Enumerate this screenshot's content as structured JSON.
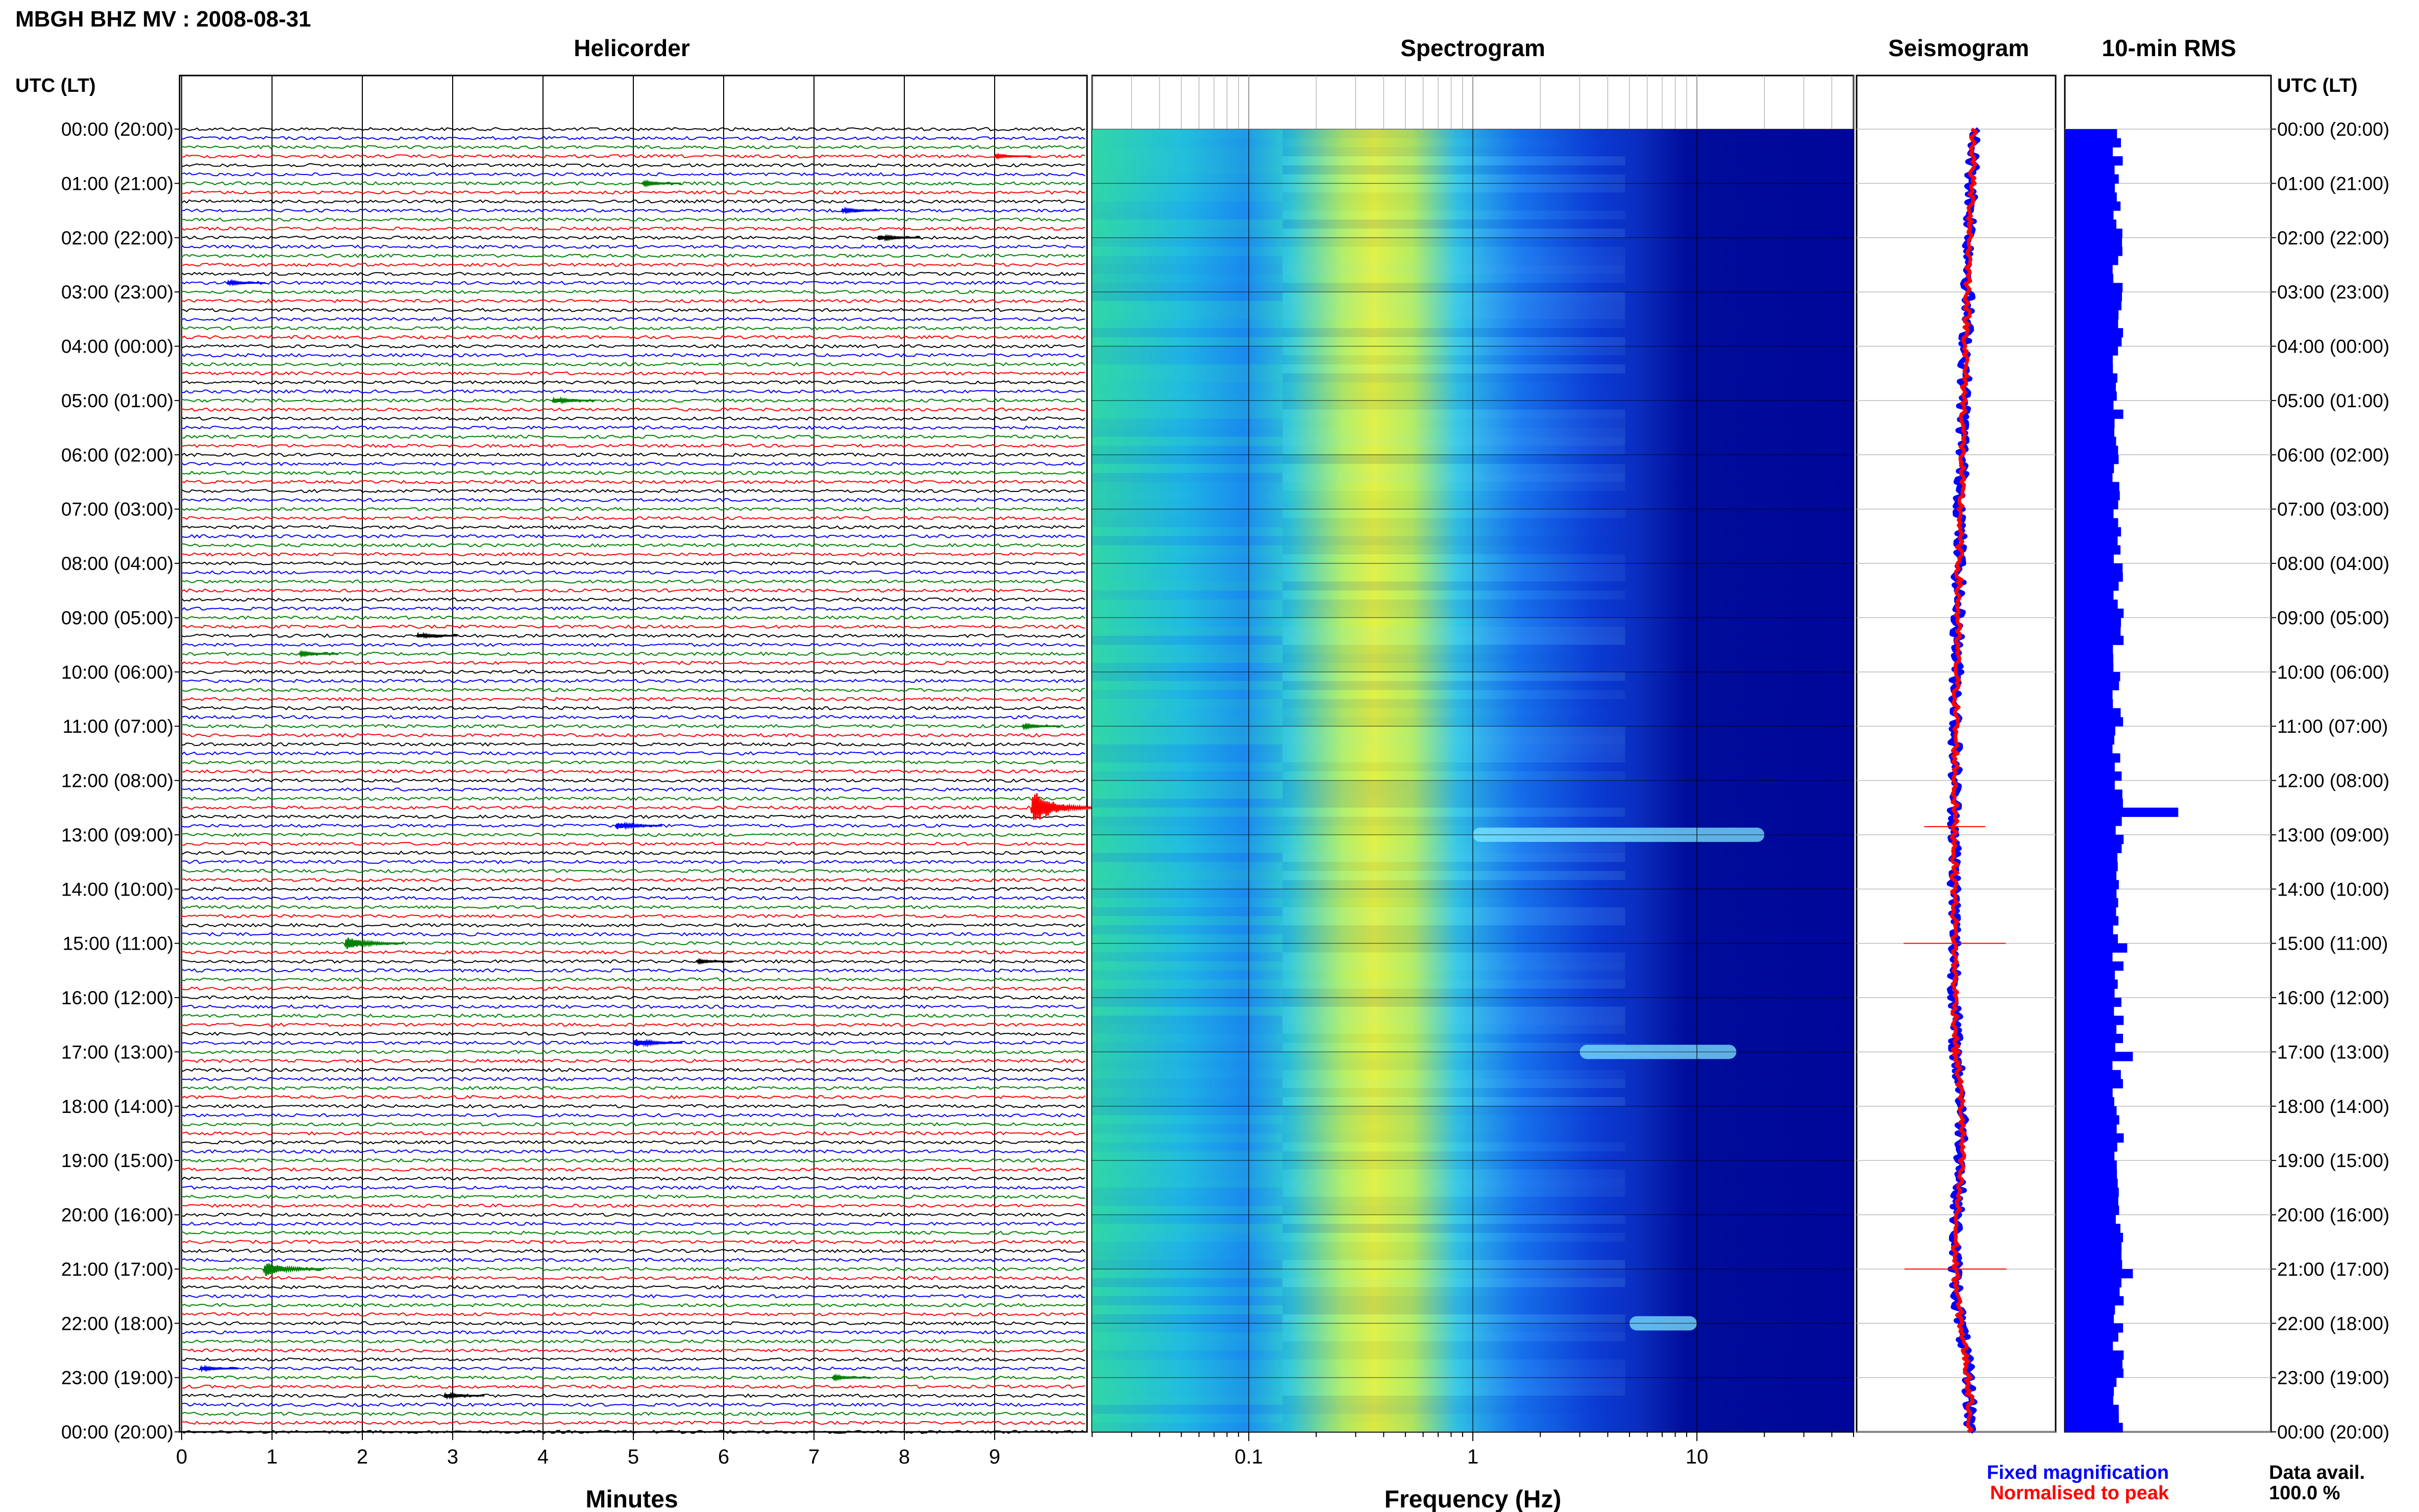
{
  "header": {
    "station_title": "MBGH BHZ MV : 2008-08-31",
    "utc_label_left": "UTC (LT)",
    "utc_label_right": "UTC (LT)"
  },
  "panels": {
    "helicorder": "Helicorder",
    "spectrogram": "Spectrogram",
    "seismogram": "Seismogram",
    "rms": "10-min RMS"
  },
  "axes": {
    "helicorder_xlabel": "Minutes",
    "spectrogram_xlabel": "Frequency (Hz)",
    "helicorder_ticks": [
      "0",
      "1",
      "2",
      "3",
      "4",
      "5",
      "6",
      "7",
      "8",
      "9"
    ],
    "spectrogram_ticks": [
      "0.1",
      "1",
      "10"
    ]
  },
  "legend": {
    "fixed": "Fixed magnification",
    "normalised": "Normalised to peak",
    "fixed_color": "#0000ff",
    "normalised_color": "#ff0000"
  },
  "data_avail": {
    "label": "Data avail.",
    "value": "100.0 %"
  },
  "time_labels": [
    "00:00 (20:00)",
    "01:00 (21:00)",
    "02:00 (22:00)",
    "03:00 (23:00)",
    "04:00 (00:00)",
    "05:00 (01:00)",
    "06:00 (02:00)",
    "07:00 (03:00)",
    "08:00 (04:00)",
    "09:00 (05:00)",
    "10:00 (06:00)",
    "11:00 (07:00)",
    "12:00 (08:00)",
    "13:00 (09:00)",
    "14:00 (10:00)",
    "15:00 (11:00)",
    "16:00 (12:00)",
    "17:00 (13:00)",
    "18:00 (14:00)",
    "19:00 (15:00)",
    "20:00 (16:00)",
    "21:00 (17:00)",
    "22:00 (18:00)",
    "23:00 (19:00)",
    "00:00 (20:00)"
  ],
  "chart_data": {
    "type": "heatmap",
    "helicorder": {
      "x_range_minutes": [
        0,
        10
      ],
      "rows": 144,
      "trace_colors": [
        "#000000",
        "#0000ff",
        "#008000",
        "#ff0000"
      ],
      "events": [
        {
          "hour": 0.5,
          "minute": 9.0,
          "amp": 0.3
        },
        {
          "hour": 1.0,
          "minute": 5.1,
          "amp": 0.4
        },
        {
          "hour": 1.5,
          "minute": 7.3,
          "amp": 0.4
        },
        {
          "hour": 2.0,
          "minute": 7.7,
          "amp": 0.6
        },
        {
          "hour": 2.8,
          "minute": 0.5,
          "amp": 0.4
        },
        {
          "hour": 5.0,
          "minute": 4.1,
          "amp": 0.6
        },
        {
          "hour": 9.3,
          "minute": 2.6,
          "amp": 0.5
        },
        {
          "hour": 9.6,
          "minute": 1.3,
          "amp": 0.4
        },
        {
          "hour": 11.0,
          "minute": 9.3,
          "amp": 0.4
        },
        {
          "hour": 12.5,
          "minute": 9.4,
          "amp": 4.0
        },
        {
          "hour": 12.8,
          "minute": 4.8,
          "amp": 0.8
        },
        {
          "hour": 15.0,
          "minute": 1.8,
          "amp": 1.4
        },
        {
          "hour": 15.3,
          "minute": 5.7,
          "amp": 0.3
        },
        {
          "hour": 16.85,
          "minute": 5.0,
          "amp": 0.9
        },
        {
          "hour": 21.0,
          "minute": 0.9,
          "amp": 1.6
        },
        {
          "hour": 22.8,
          "minute": 0.2,
          "amp": 0.4
        },
        {
          "hour": 23.3,
          "minute": 2.9,
          "amp": 0.5
        },
        {
          "hour": 23.0,
          "minute": 7.2,
          "amp": 0.4
        }
      ]
    },
    "spectrogram": {
      "freq_range_hz": [
        0.02,
        50
      ],
      "log_scale": true,
      "peak_band_hz": [
        0.25,
        0.6
      ],
      "bright_bands": [
        {
          "hour": 13.0,
          "freq_from_hz": 1.0,
          "freq_to_hz": 20
        },
        {
          "hour": 17.0,
          "freq_from_hz": 3.0,
          "freq_to_hz": 15
        },
        {
          "hour": 22.0,
          "freq_from_hz": 5.0,
          "freq_to_hz": 10
        }
      ]
    },
    "seismogram": {
      "series": [
        {
          "name": "Fixed magnification",
          "color": "#0000ff"
        },
        {
          "name": "Normalised to peak",
          "color": "#ff0000"
        }
      ]
    },
    "rms": {
      "bins_per_hour": 6,
      "spikes": [
        {
          "hour": 12.5,
          "value": 1.0
        },
        {
          "hour": 15.0,
          "value": 0.55
        },
        {
          "hour": 16.95,
          "value": 0.6
        },
        {
          "hour": 21.0,
          "value": 0.6
        }
      ],
      "baseline_range": [
        0.42,
        0.52
      ]
    }
  }
}
